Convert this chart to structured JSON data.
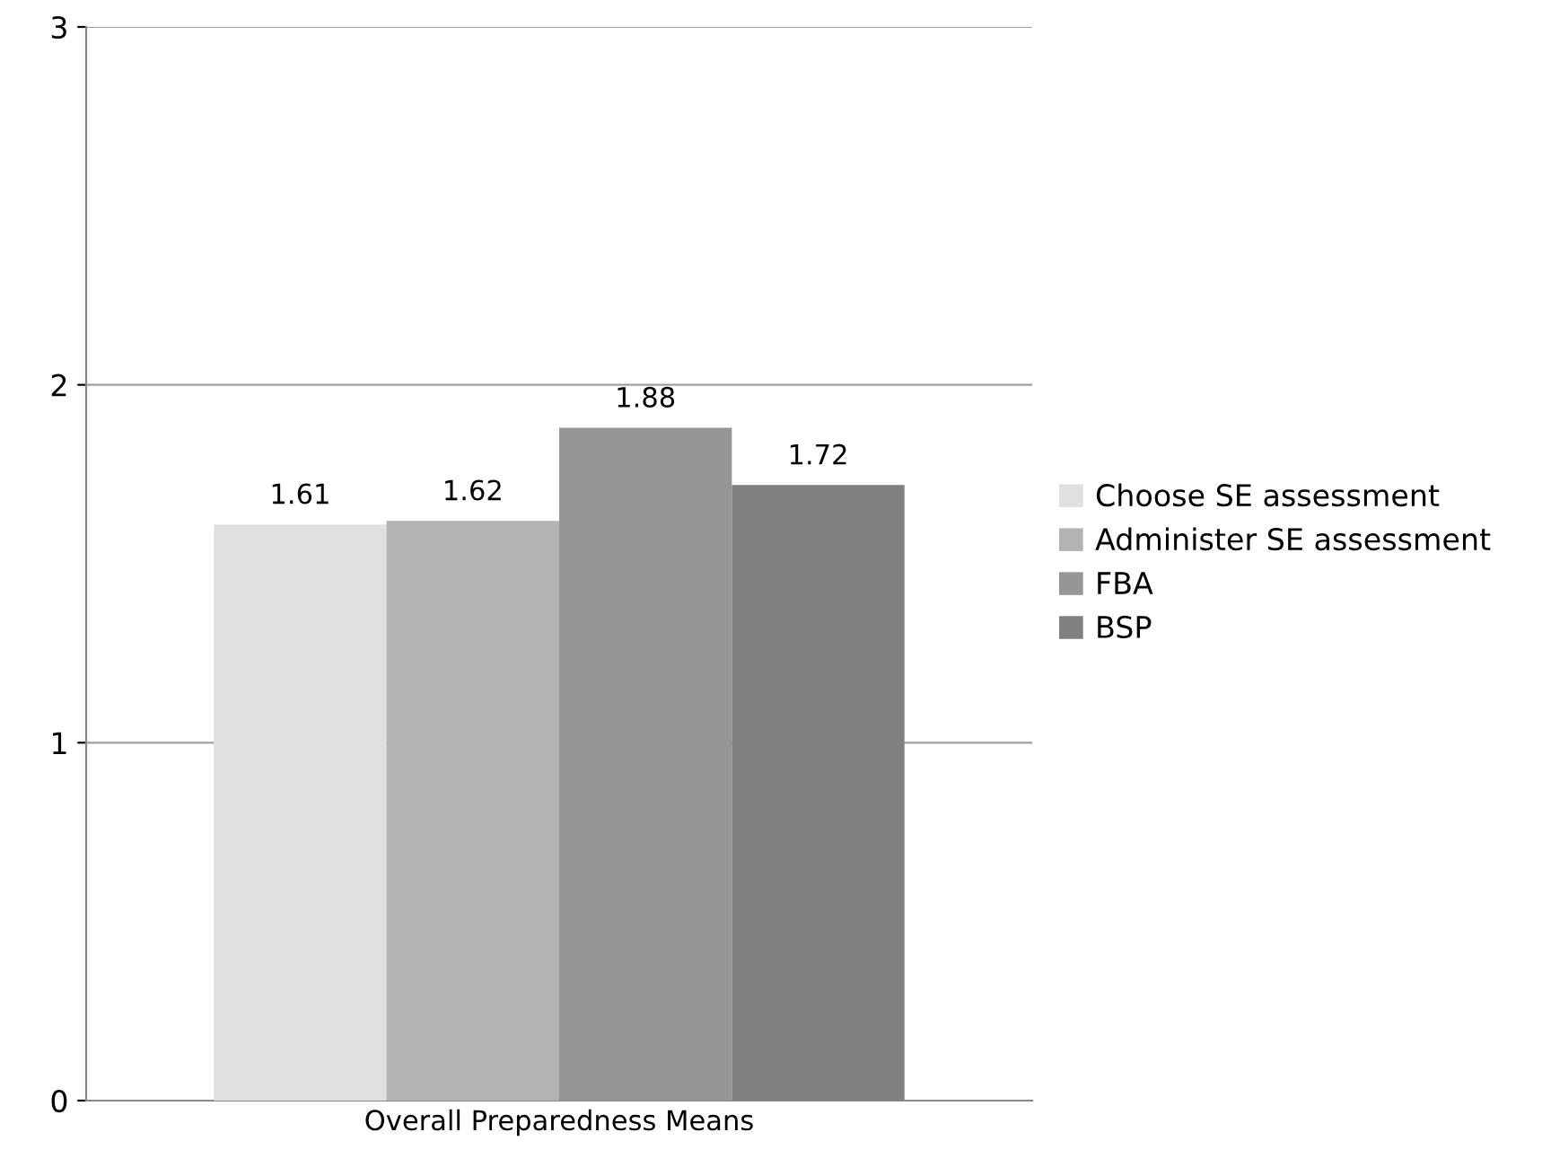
{
  "chart_data": {
    "type": "bar",
    "categories": [
      "Overall Preparedness Means"
    ],
    "series": [
      {
        "name": "Choose SE assessment",
        "color": "#e0e0e0",
        "values": [
          1.61
        ]
      },
      {
        "name": "Administer SE assessment",
        "color": "#b3b3b3",
        "values": [
          1.62
        ]
      },
      {
        "name": "FBA",
        "color": "#969696",
        "values": [
          1.88
        ]
      },
      {
        "name": "BSP",
        "color": "#808080",
        "values": [
          1.72
        ]
      }
    ],
    "ylim": [
      0,
      3
    ],
    "yticks": [
      0,
      1,
      2,
      3
    ],
    "grid": "y",
    "legend": "right",
    "data_labels": true
  }
}
